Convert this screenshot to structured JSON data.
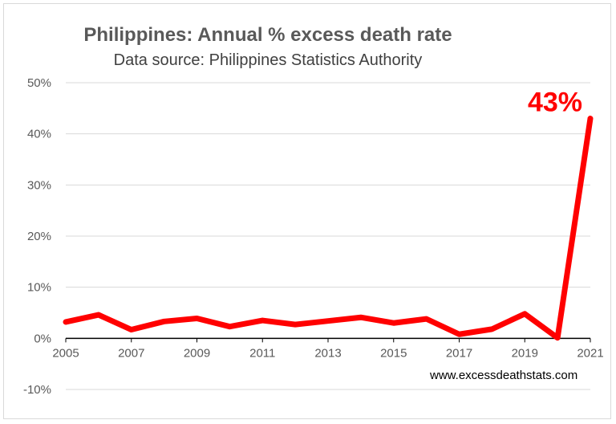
{
  "chart_data": {
    "type": "line",
    "title": "Philippines: Annual % excess death rate",
    "subtitle": "Data source: Philippines Statistics Authority",
    "x": [
      2005,
      2006,
      2007,
      2008,
      2009,
      2010,
      2011,
      2012,
      2013,
      2014,
      2015,
      2016,
      2017,
      2018,
      2019,
      2020,
      2021
    ],
    "x_tick_labels": [
      "2005",
      "2007",
      "2009",
      "2011",
      "2013",
      "2015",
      "2017",
      "2019",
      "2021"
    ],
    "series": [
      {
        "values": [
          3.2,
          4.6,
          1.7,
          3.3,
          3.9,
          2.3,
          3.5,
          2.7,
          3.4,
          4.1,
          3.0,
          3.8,
          0.8,
          1.8,
          4.8,
          0.1,
          43.0
        ],
        "color": "#ff0000"
      }
    ],
    "y_tick_labels": [
      "-10%",
      "0%",
      "10%",
      "20%",
      "30%",
      "40%",
      "50%"
    ],
    "ylim": [
      -10,
      50
    ],
    "xlim": [
      2005,
      2021
    ],
    "grid": true,
    "annotation": {
      "text": "43%",
      "x": 2021,
      "y": 43
    },
    "source_note": "www.excessdeathstats.com"
  }
}
